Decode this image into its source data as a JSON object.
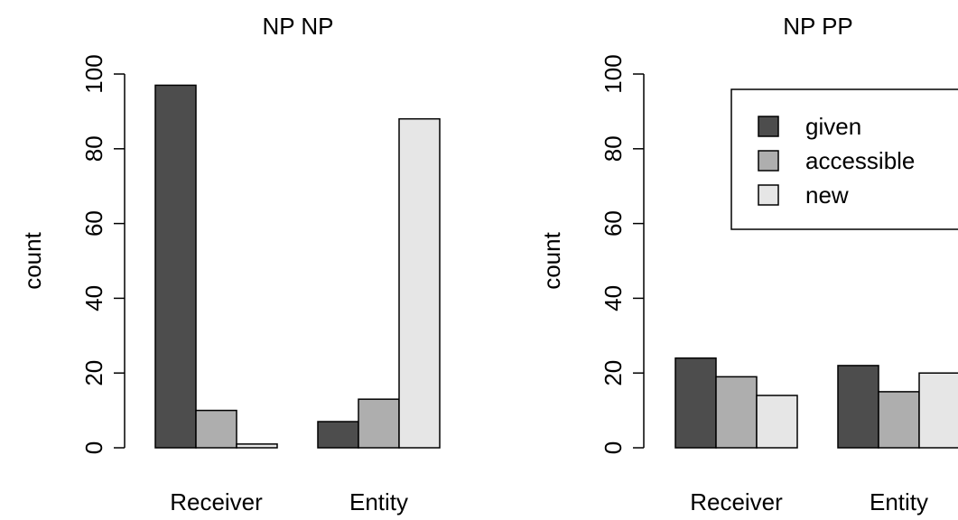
{
  "chart_data": [
    {
      "type": "bar",
      "title": "NP NP",
      "xlabel": "",
      "ylabel": "count",
      "ylim": [
        0,
        100
      ],
      "yticks": [
        "0",
        "20",
        "40",
        "60",
        "80",
        "100"
      ],
      "categories": [
        "Receiver",
        "Entity"
      ],
      "series": [
        {
          "name": "given",
          "color": "#4d4d4d",
          "values": [
            97,
            7
          ]
        },
        {
          "name": "accessible",
          "color": "#aeaeae",
          "values": [
            10,
            13
          ]
        },
        {
          "name": "new",
          "color": "#e6e6e6",
          "values": [
            1,
            88
          ]
        }
      ],
      "legend": "none",
      "grid": false
    },
    {
      "type": "bar",
      "title": "NP PP",
      "xlabel": "",
      "ylabel": "count",
      "ylim": [
        0,
        100
      ],
      "yticks": [
        "0",
        "20",
        "40",
        "60",
        "80",
        "100"
      ],
      "categories": [
        "Receiver",
        "Entity"
      ],
      "series": [
        {
          "name": "given",
          "color": "#4d4d4d",
          "values": [
            24,
            22
          ]
        },
        {
          "name": "accessible",
          "color": "#aeaeae",
          "values": [
            19,
            15
          ]
        },
        {
          "name": "new",
          "color": "#e6e6e6",
          "values": [
            14,
            20
          ]
        }
      ],
      "legend": "top-right",
      "grid": false
    }
  ]
}
